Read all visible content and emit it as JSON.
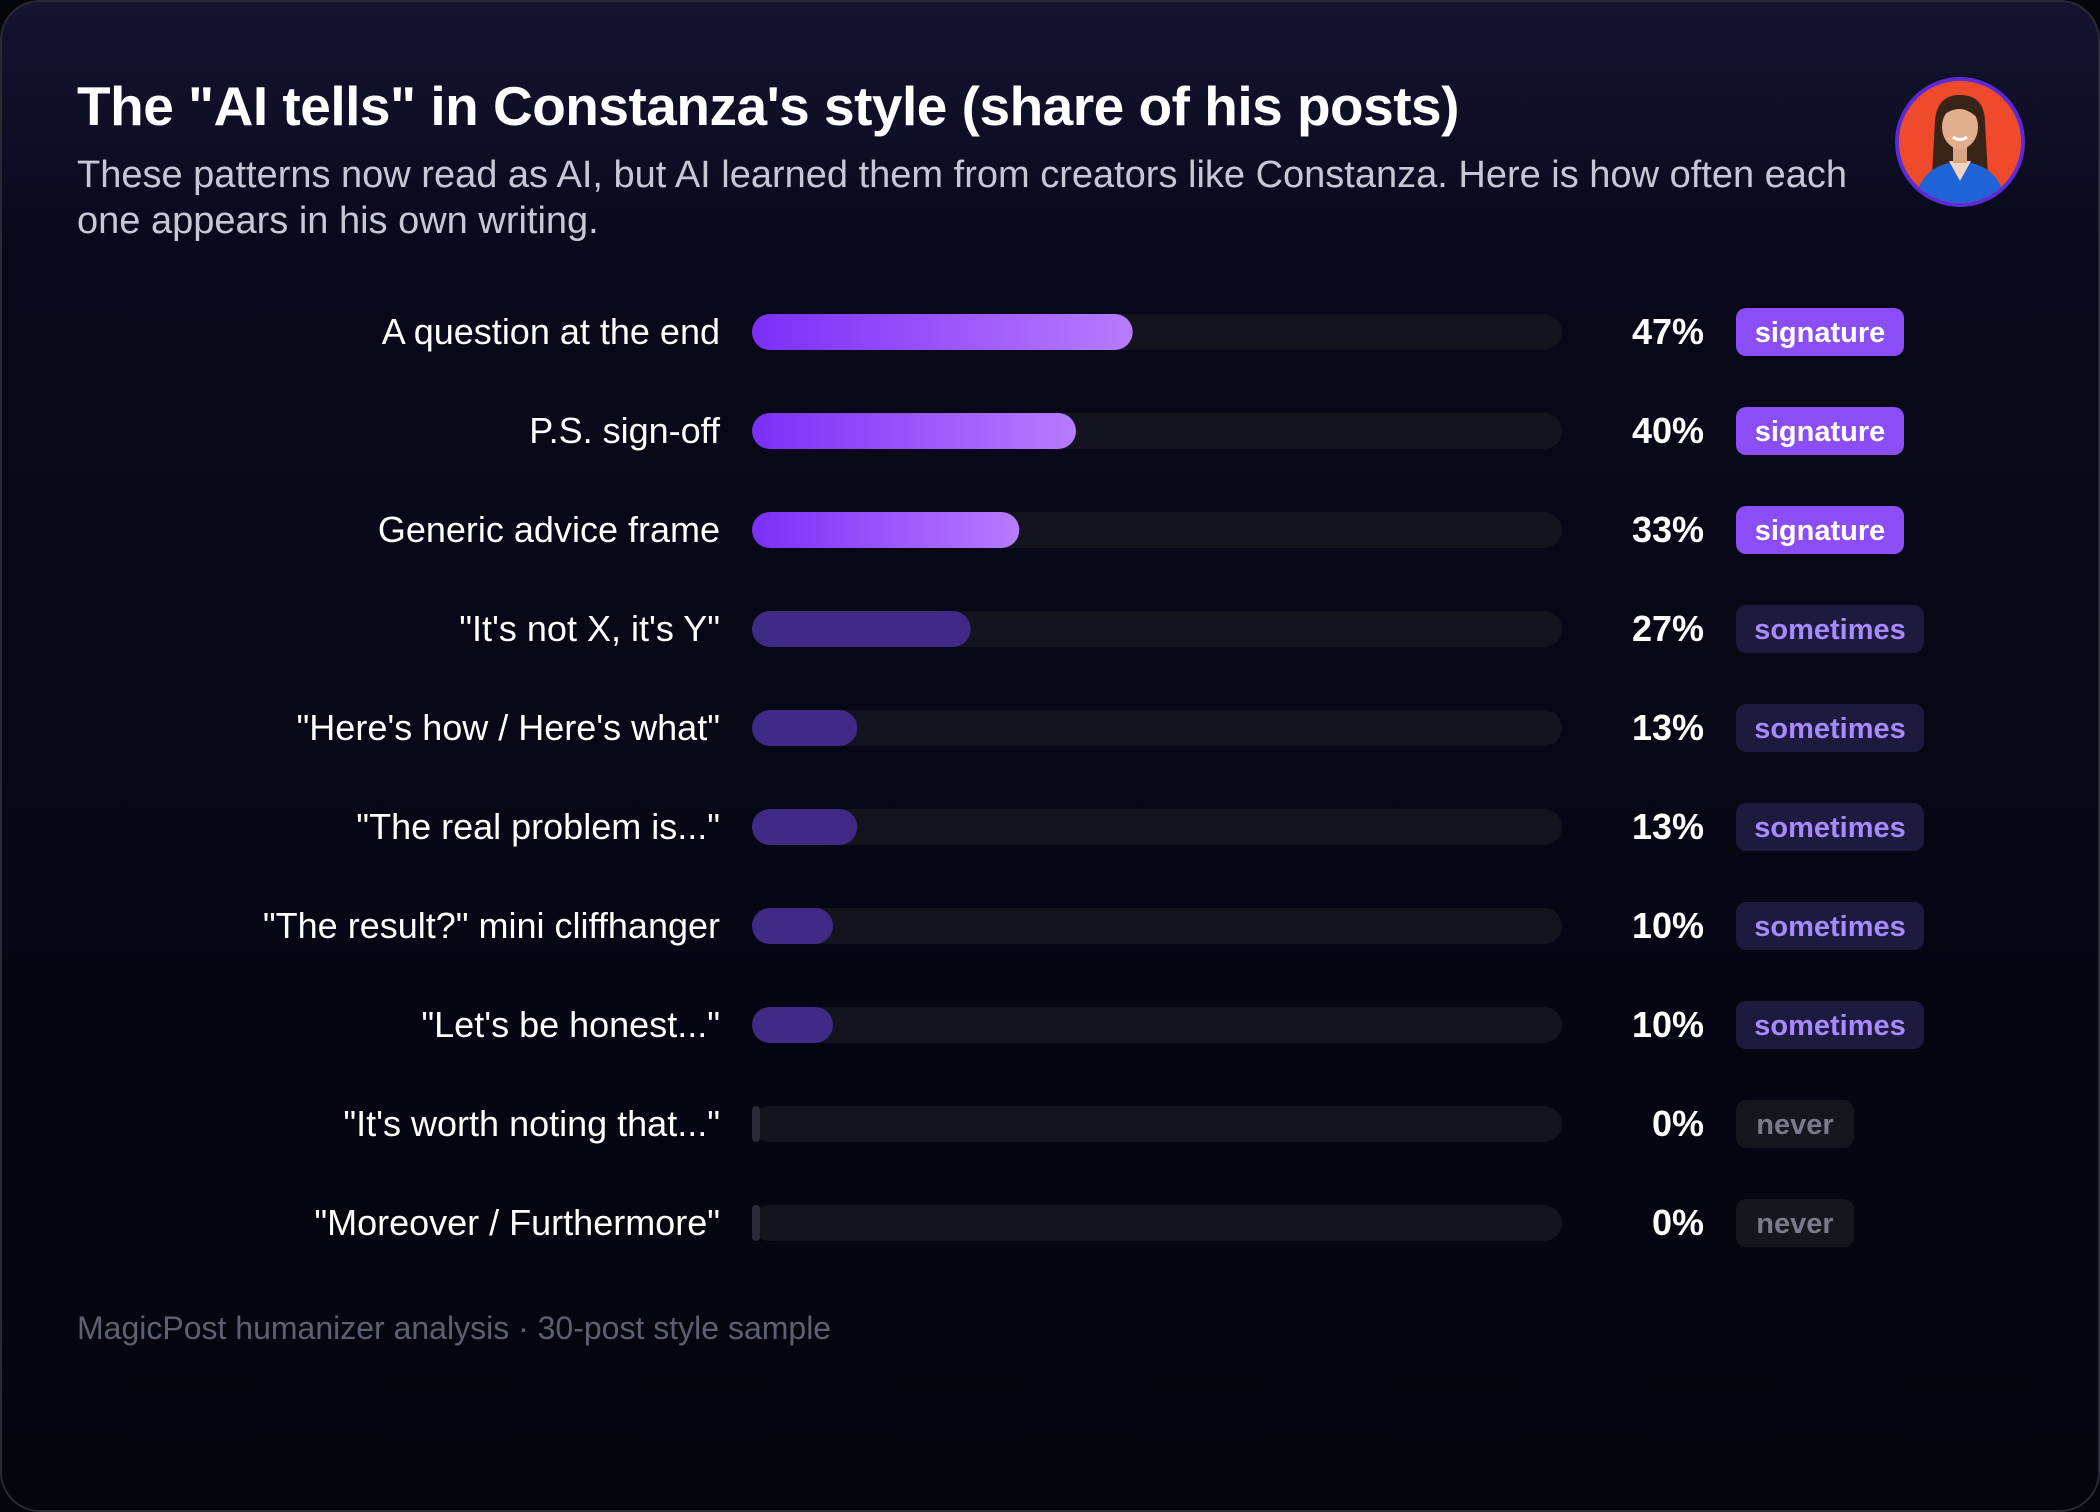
{
  "header": {
    "title": "The \"AI tells\" in Constanza's style (share of his posts)",
    "subtitle": "These patterns now read as AI, but AI learned them from creators like Constanza. Here is how often each one appears in his own writing."
  },
  "footer": {
    "source": "MagicPost humanizer analysis · 30-post style sample"
  },
  "colors": {
    "background": "#06060f",
    "track": "#14141f",
    "signature_bar_start": "#7b2ff7",
    "signature_bar_end": "#b77cff",
    "sometimes_bar": "#3f2a86",
    "never_bar": "#2a2a38",
    "signature_tag_bg": "#8a4df6",
    "sometimes_tag_bg": "#1d1a3e",
    "sometimes_tag_text": "#a58bff",
    "never_tag_bg": "#16161f",
    "never_tag_text": "#7a7a8a"
  },
  "chart_data": {
    "type": "bar",
    "orientation": "horizontal",
    "value_format": "percent",
    "xlim": [
      0,
      100
    ],
    "categories": [
      "A question at the end",
      "P.S. sign-off",
      "Generic advice frame",
      "\"It's not X, it's Y\"",
      "\"Here's how / Here's what\"",
      "\"The real problem is...\"",
      "\"The result?\" mini cliffhanger",
      "\"Let's be honest...\"",
      "\"It's worth noting that...\"",
      "\"Moreover / Furthermore\""
    ],
    "values": [
      47,
      40,
      33,
      27,
      13,
      13,
      10,
      10,
      0,
      0
    ],
    "value_labels": [
      "47%",
      "40%",
      "33%",
      "27%",
      "13%",
      "13%",
      "10%",
      "10%",
      "0%",
      "0%"
    ],
    "tags": [
      "signature",
      "signature",
      "signature",
      "sometimes",
      "sometimes",
      "sometimes",
      "sometimes",
      "sometimes",
      "never",
      "never"
    ]
  }
}
